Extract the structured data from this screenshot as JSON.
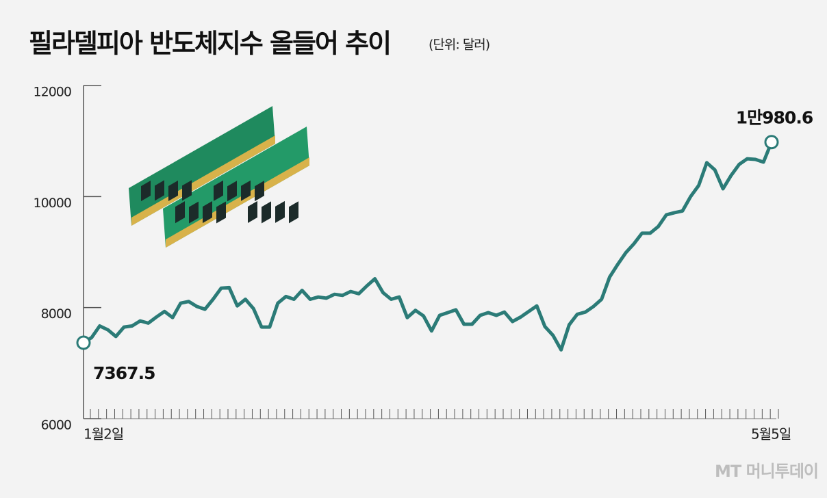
{
  "chart_data": {
    "type": "line",
    "title": "필라델피아 반도체지수 올들어 추이",
    "subtitle": "(단위: 달러)",
    "watermark": "MT 머니투데이",
    "x": [
      "1월2일",
      null,
      null,
      null,
      null,
      null,
      null,
      null,
      null,
      null,
      null,
      null,
      null,
      null,
      null,
      null,
      null,
      null,
      null,
      null,
      null,
      null,
      null,
      null,
      null,
      null,
      null,
      null,
      null,
      null,
      null,
      null,
      null,
      null,
      null,
      null,
      null,
      null,
      null,
      null,
      null,
      null,
      null,
      null,
      null,
      null,
      null,
      null,
      null,
      null,
      null,
      null,
      null,
      null,
      null,
      null,
      null,
      null,
      null,
      null,
      null,
      null,
      null,
      null,
      null,
      null,
      null,
      null,
      null,
      null,
      null,
      null,
      null,
      null,
      null,
      null,
      null,
      null,
      null,
      null,
      null,
      null,
      null,
      null,
      null,
      "5월5일"
    ],
    "series": [
      {
        "name": "필라델피아 반도체지수",
        "color": "#2b7b77",
        "values": [
          7367.5,
          7460,
          7670,
          7600,
          7480,
          7650,
          7670,
          7760,
          7720,
          7830,
          7930,
          7820,
          8080,
          8110,
          8020,
          7970,
          8150,
          8350,
          8360,
          8030,
          8150,
          7980,
          7650,
          7650,
          8080,
          8200,
          8150,
          8310,
          8150,
          8190,
          8170,
          8240,
          8220,
          8290,
          8250,
          8390,
          8520,
          8270,
          8150,
          8190,
          7820,
          7950,
          7850,
          7580,
          7860,
          7910,
          7960,
          7700,
          7700,
          7860,
          7910,
          7860,
          7920,
          7750,
          7830,
          7930,
          8030,
          7660,
          7500,
          7240,
          7690,
          7880,
          7920,
          8020,
          8150,
          8550,
          8780,
          8990,
          9150,
          9340,
          9340,
          9460,
          9670,
          9710,
          9740,
          10000,
          10200,
          10610,
          10480,
          10140,
          10380,
          10580,
          10680,
          10670,
          10620,
          10980.6
        ],
        "value_labels": [
          "7367.5",
          null,
          null,
          null,
          null,
          null,
          null,
          null,
          null,
          null,
          null,
          null,
          null,
          null,
          null,
          null,
          null,
          null,
          null,
          null,
          null,
          null,
          null,
          null,
          null,
          null,
          null,
          null,
          null,
          null,
          null,
          null,
          null,
          null,
          null,
          null,
          null,
          null,
          null,
          null,
          null,
          null,
          null,
          null,
          null,
          null,
          null,
          null,
          null,
          null,
          null,
          null,
          null,
          null,
          null,
          null,
          null,
          null,
          null,
          null,
          null,
          null,
          null,
          null,
          null,
          null,
          null,
          null,
          null,
          null,
          null,
          null,
          null,
          null,
          null,
          null,
          null,
          null,
          null,
          null,
          null,
          null,
          null,
          null,
          null,
          "1만980.6"
        ]
      }
    ],
    "ylim": [
      6000,
      12000
    ],
    "yticks": [
      6000,
      8000,
      10000,
      12000
    ],
    "grid": false
  }
}
